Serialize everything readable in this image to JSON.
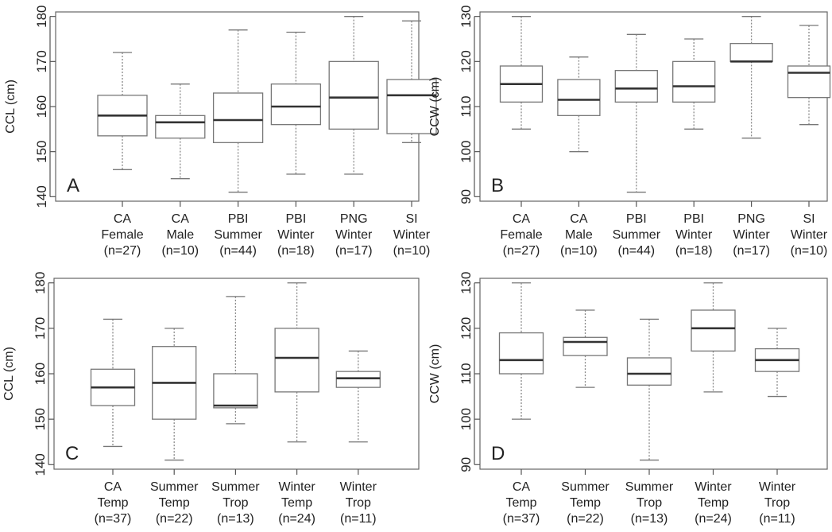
{
  "chart_data": [
    {
      "type": "boxplot",
      "panel_label": "A",
      "ylabel": "CCL (cm)",
      "ylim": [
        139,
        181
      ],
      "yticks": [
        140,
        150,
        160,
        170,
        180
      ],
      "categories": [
        [
          "CA",
          "Female",
          "(n=27)"
        ],
        [
          "CA",
          "Male",
          "(n=10)"
        ],
        [
          "PBI",
          "Summer",
          "(n=44)"
        ],
        [
          "PBI",
          "Winter",
          "(n=18)"
        ],
        [
          "PNG",
          "Winter",
          "(n=17)"
        ],
        [
          "SI",
          "Winter",
          "(n=10)"
        ]
      ],
      "boxes": [
        {
          "min": 146,
          "q1": 153.5,
          "median": 158,
          "q3": 162.5,
          "max": 172
        },
        {
          "min": 144,
          "q1": 153,
          "median": 156.5,
          "q3": 158,
          "max": 165
        },
        {
          "min": 141,
          "q1": 152,
          "median": 157,
          "q3": 163,
          "max": 177
        },
        {
          "min": 145,
          "q1": 156,
          "median": 160,
          "q3": 165,
          "max": 176.5
        },
        {
          "min": 145,
          "q1": 155,
          "median": 162,
          "q3": 170,
          "max": 180
        },
        {
          "min": 152,
          "q1": 154,
          "median": 162.5,
          "q3": 166,
          "max": 179
        }
      ]
    },
    {
      "type": "boxplot",
      "panel_label": "B",
      "ylabel": "CCW (cm)",
      "ylim": [
        89,
        131
      ],
      "yticks": [
        90,
        100,
        110,
        120,
        130
      ],
      "categories": [
        [
          "CA",
          "Female",
          "(n=27)"
        ],
        [
          "CA",
          "Male",
          "(n=10)"
        ],
        [
          "PBI",
          "Summer",
          "(n=44)"
        ],
        [
          "PBI",
          "Winter",
          "(n=18)"
        ],
        [
          "PNG",
          "Winter",
          "(n=17)"
        ],
        [
          "SI",
          "Winter",
          "(n=10)"
        ]
      ],
      "boxes": [
        {
          "min": 105,
          "q1": 111,
          "median": 115,
          "q3": 119,
          "max": 130
        },
        {
          "min": 100,
          "q1": 108,
          "median": 111.5,
          "q3": 116,
          "max": 121
        },
        {
          "min": 91,
          "q1": 111,
          "median": 114,
          "q3": 118,
          "max": 126
        },
        {
          "min": 105,
          "q1": 111,
          "median": 114.5,
          "q3": 120,
          "max": 125
        },
        {
          "min": 103,
          "q1": 120,
          "median": 120,
          "q3": 124,
          "max": 130
        },
        {
          "min": 106,
          "q1": 112,
          "median": 117.5,
          "q3": 119,
          "max": 128
        }
      ]
    },
    {
      "type": "boxplot",
      "panel_label": "C",
      "ylabel": "CCL (cm)",
      "ylim": [
        139,
        181
      ],
      "yticks": [
        140,
        150,
        160,
        170,
        180
      ],
      "categories": [
        [
          "CA",
          "Temp",
          "(n=37)"
        ],
        [
          "Summer",
          "Temp",
          "(n=22)"
        ],
        [
          "Summer",
          "Trop",
          "(n=13)"
        ],
        [
          "Winter",
          "Temp",
          "(n=24)"
        ],
        [
          "Winter",
          "Trop",
          "(n=11)"
        ]
      ],
      "boxes": [
        {
          "min": 144,
          "q1": 153,
          "median": 157,
          "q3": 161,
          "max": 172
        },
        {
          "min": 141,
          "q1": 150,
          "median": 158,
          "q3": 166,
          "max": 170
        },
        {
          "min": 149,
          "q1": 152.5,
          "median": 153,
          "q3": 160,
          "max": 177
        },
        {
          "min": 145,
          "q1": 156,
          "median": 163.5,
          "q3": 170,
          "max": 180
        },
        {
          "min": 145,
          "q1": 157,
          "median": 159,
          "q3": 160.5,
          "max": 165
        }
      ]
    },
    {
      "type": "boxplot",
      "panel_label": "D",
      "ylabel": "CCW (cm)",
      "ylim": [
        89,
        131
      ],
      "yticks": [
        90,
        100,
        110,
        120,
        130
      ],
      "categories": [
        [
          "CA",
          "Temp",
          "(n=37)"
        ],
        [
          "Summer",
          "Temp",
          "(n=22)"
        ],
        [
          "Summer",
          "Trop",
          "(n=13)"
        ],
        [
          "Winter",
          "Temp",
          "(n=24)"
        ],
        [
          "Winter",
          "Trop",
          "(n=11)"
        ]
      ],
      "boxes": [
        {
          "min": 100,
          "q1": 110,
          "median": 113,
          "q3": 119,
          "max": 130
        },
        {
          "min": 107,
          "q1": 114,
          "median": 117,
          "q3": 118,
          "max": 124
        },
        {
          "min": 91,
          "q1": 107.5,
          "median": 110,
          "q3": 113.5,
          "max": 122
        },
        {
          "min": 106,
          "q1": 115,
          "median": 120,
          "q3": 124,
          "max": 130
        },
        {
          "min": 105,
          "q1": 110.5,
          "median": 113,
          "q3": 115.5,
          "max": 120
        }
      ]
    }
  ]
}
